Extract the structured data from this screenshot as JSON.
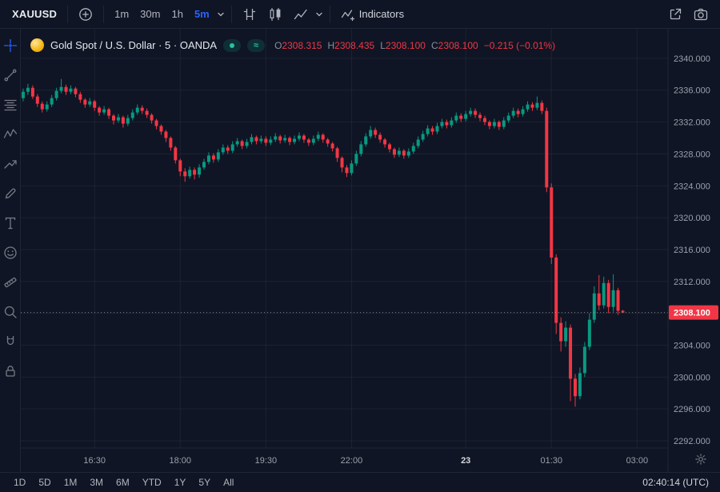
{
  "top_toolbar": {
    "symbol": "XAUUSD",
    "intervals": [
      {
        "label": "1m",
        "active": false
      },
      {
        "label": "30m",
        "active": false
      },
      {
        "label": "1h",
        "active": false
      },
      {
        "label": "5m",
        "active": true
      }
    ],
    "indicators_label": "Indicators"
  },
  "legend": {
    "title": "Gold Spot / U.S. Dollar · 5 · OANDA",
    "badges": {
      "approx_glyph": "≈"
    },
    "ohlc": {
      "open_key": "O",
      "open": "2308.315",
      "high_key": "H",
      "high": "2308.435",
      "low_key": "L",
      "low": "2308.100",
      "close_key": "C",
      "close": "2308.100",
      "change": "−0.215 (−0.01%)"
    }
  },
  "bottom_toolbar": {
    "ranges": [
      "1D",
      "5D",
      "1M",
      "3M",
      "6M",
      "YTD",
      "1Y",
      "5Y",
      "All"
    ],
    "clock": "02:40:14 (UTC)"
  },
  "colors": {
    "background": "#0f1524",
    "accent_blue": "#2962ff",
    "up": "#089981",
    "down": "#f23645",
    "axis_text": "#9aa0ab"
  },
  "chart_data": {
    "type": "candlestick",
    "title": "Gold Spot / U.S. Dollar",
    "interval_minutes": 5,
    "exchange": "OANDA",
    "ylim": [
      2291.1,
      2343.7
    ],
    "x_slots": 136,
    "grid": true,
    "colors": {
      "up": "#089981",
      "down": "#f23645"
    },
    "last_price": {
      "value": 2308.1,
      "label": "2308.100",
      "direction": "down"
    },
    "price_ticks": [
      {
        "price": 2340,
        "label": "2340.000"
      },
      {
        "price": 2336,
        "label": "2336.000"
      },
      {
        "price": 2332,
        "label": "2332.000"
      },
      {
        "price": 2328,
        "label": "2328.000"
      },
      {
        "price": 2324,
        "label": "2324.000"
      },
      {
        "price": 2320,
        "label": "2320.000"
      },
      {
        "price": 2316,
        "label": "2316.000"
      },
      {
        "price": 2312,
        "label": "2312.000"
      },
      {
        "price": 2308,
        "label": ""
      },
      {
        "price": 2304,
        "label": "2304.000"
      },
      {
        "price": 2300,
        "label": "2300.000"
      },
      {
        "price": 2296,
        "label": "2296.000"
      },
      {
        "price": 2292,
        "label": "2292.000"
      }
    ],
    "time_ticks": [
      {
        "i": 15,
        "label": "16:30",
        "major": false
      },
      {
        "i": 33,
        "label": "18:00",
        "major": false
      },
      {
        "i": 51,
        "label": "19:30",
        "major": false
      },
      {
        "i": 69,
        "label": "22:00",
        "major": false
      },
      {
        "i": 93,
        "label": "23",
        "major": true
      },
      {
        "i": 111,
        "label": "01:30",
        "major": false
      },
      {
        "i": 129,
        "label": "03:00",
        "major": false
      }
    ],
    "candles": [
      [
        2335.0,
        2336.2,
        2334.6,
        2335.8
      ],
      [
        2335.8,
        2336.8,
        2335.4,
        2336.3
      ],
      [
        2336.3,
        2336.6,
        2334.9,
        2335.2
      ],
      [
        2335.2,
        2335.5,
        2333.9,
        2334.3
      ],
      [
        2334.3,
        2334.6,
        2333.2,
        2333.6
      ],
      [
        2333.6,
        2334.6,
        2333.3,
        2334.2
      ],
      [
        2334.2,
        2335.4,
        2333.9,
        2335.0
      ],
      [
        2335.0,
        2336.3,
        2334.7,
        2335.9
      ],
      [
        2335.9,
        2337.4,
        2335.6,
        2336.4
      ],
      [
        2336.4,
        2336.7,
        2335.4,
        2335.8
      ],
      [
        2335.8,
        2336.6,
        2335.5,
        2336.2
      ],
      [
        2336.2,
        2336.4,
        2335.1,
        2335.5
      ],
      [
        2335.5,
        2335.8,
        2334.4,
        2334.8
      ],
      [
        2334.8,
        2335.0,
        2333.8,
        2334.2
      ],
      [
        2334.2,
        2335.0,
        2333.9,
        2334.6
      ],
      [
        2334.6,
        2334.8,
        2333.4,
        2333.8
      ],
      [
        2333.8,
        2334.0,
        2332.8,
        2333.2
      ],
      [
        2333.2,
        2334.0,
        2332.9,
        2333.6
      ],
      [
        2333.6,
        2333.8,
        2332.4,
        2332.8
      ],
      [
        2332.8,
        2333.0,
        2331.7,
        2332.2
      ],
      [
        2332.2,
        2333.0,
        2331.9,
        2332.6
      ],
      [
        2332.6,
        2332.8,
        2331.3,
        2331.8
      ],
      [
        2331.8,
        2332.9,
        2331.5,
        2332.5
      ],
      [
        2332.5,
        2333.6,
        2332.2,
        2333.2
      ],
      [
        2333.2,
        2334.2,
        2332.9,
        2333.8
      ],
      [
        2333.8,
        2334.1,
        2333.0,
        2333.4
      ],
      [
        2333.4,
        2333.7,
        2332.5,
        2332.9
      ],
      [
        2332.9,
        2333.1,
        2331.8,
        2332.2
      ],
      [
        2332.2,
        2332.4,
        2331.1,
        2331.5
      ],
      [
        2331.5,
        2331.7,
        2330.4,
        2330.8
      ],
      [
        2330.8,
        2331.0,
        2329.5,
        2330.0
      ],
      [
        2330.0,
        2330.2,
        2328.4,
        2328.8
      ],
      [
        2328.8,
        2329.0,
        2326.8,
        2327.2
      ],
      [
        2327.2,
        2327.4,
        2325.2,
        2325.8
      ],
      [
        2325.8,
        2326.2,
        2324.5,
        2325.2
      ],
      [
        2325.2,
        2326.4,
        2324.9,
        2326.0
      ],
      [
        2326.0,
        2326.3,
        2324.8,
        2325.4
      ],
      [
        2325.4,
        2326.7,
        2325.0,
        2326.3
      ],
      [
        2326.3,
        2327.4,
        2326.0,
        2327.0
      ],
      [
        2327.0,
        2328.2,
        2326.7,
        2327.8
      ],
      [
        2327.8,
        2328.1,
        2326.9,
        2327.3
      ],
      [
        2327.3,
        2328.6,
        2327.0,
        2328.2
      ],
      [
        2328.2,
        2329.2,
        2327.9,
        2328.8
      ],
      [
        2328.8,
        2329.1,
        2328.0,
        2328.4
      ],
      [
        2328.4,
        2329.6,
        2328.1,
        2329.2
      ],
      [
        2329.2,
        2330.0,
        2328.9,
        2329.6
      ],
      [
        2329.6,
        2329.8,
        2328.6,
        2329.0
      ],
      [
        2329.0,
        2329.9,
        2328.7,
        2329.5
      ],
      [
        2329.5,
        2330.5,
        2329.2,
        2330.1
      ],
      [
        2330.1,
        2330.3,
        2329.2,
        2329.6
      ],
      [
        2329.6,
        2330.3,
        2329.3,
        2329.9
      ],
      [
        2329.9,
        2330.2,
        2329.0,
        2329.4
      ],
      [
        2329.4,
        2330.2,
        2329.1,
        2329.8
      ],
      [
        2329.8,
        2330.6,
        2329.5,
        2330.2
      ],
      [
        2330.2,
        2330.4,
        2329.3,
        2329.7
      ],
      [
        2329.7,
        2330.4,
        2329.4,
        2330.0
      ],
      [
        2330.0,
        2330.2,
        2329.1,
        2329.5
      ],
      [
        2329.5,
        2330.3,
        2329.2,
        2329.9
      ],
      [
        2329.9,
        2330.7,
        2329.6,
        2330.3
      ],
      [
        2330.3,
        2330.5,
        2329.4,
        2329.8
      ],
      [
        2329.8,
        2330.0,
        2329.0,
        2329.4
      ],
      [
        2329.4,
        2330.3,
        2329.1,
        2329.9
      ],
      [
        2329.9,
        2330.8,
        2329.6,
        2330.4
      ],
      [
        2330.4,
        2330.6,
        2329.4,
        2329.8
      ],
      [
        2329.8,
        2330.0,
        2328.9,
        2329.3
      ],
      [
        2329.3,
        2329.5,
        2328.3,
        2328.7
      ],
      [
        2328.7,
        2328.9,
        2327.0,
        2327.5
      ],
      [
        2327.5,
        2327.7,
        2325.7,
        2326.3
      ],
      [
        2326.3,
        2326.6,
        2325.1,
        2325.6
      ],
      [
        2325.6,
        2327.2,
        2325.3,
        2326.8
      ],
      [
        2326.8,
        2328.4,
        2326.5,
        2328.0
      ],
      [
        2328.0,
        2329.6,
        2327.7,
        2329.2
      ],
      [
        2329.2,
        2330.6,
        2328.9,
        2330.2
      ],
      [
        2330.2,
        2331.5,
        2329.9,
        2331.0
      ],
      [
        2331.0,
        2331.3,
        2330.0,
        2330.4
      ],
      [
        2330.4,
        2330.7,
        2329.4,
        2329.8
      ],
      [
        2329.8,
        2330.0,
        2328.8,
        2329.2
      ],
      [
        2329.2,
        2329.4,
        2328.2,
        2328.6
      ],
      [
        2328.6,
        2328.8,
        2327.5,
        2327.9
      ],
      [
        2327.9,
        2328.8,
        2327.6,
        2328.4
      ],
      [
        2328.4,
        2328.6,
        2327.4,
        2327.8
      ],
      [
        2327.8,
        2328.7,
        2327.5,
        2328.3
      ],
      [
        2328.3,
        2329.4,
        2328.0,
        2329.0
      ],
      [
        2329.0,
        2330.2,
        2328.7,
        2329.8
      ],
      [
        2329.8,
        2330.9,
        2329.5,
        2330.5
      ],
      [
        2330.5,
        2331.6,
        2330.2,
        2331.2
      ],
      [
        2331.2,
        2331.5,
        2330.4,
        2330.8
      ],
      [
        2330.8,
        2331.9,
        2330.5,
        2331.5
      ],
      [
        2331.5,
        2332.4,
        2331.2,
        2332.0
      ],
      [
        2332.0,
        2332.3,
        2331.2,
        2331.6
      ],
      [
        2331.6,
        2332.6,
        2331.3,
        2332.2
      ],
      [
        2332.2,
        2333.2,
        2331.9,
        2332.8
      ],
      [
        2332.8,
        2333.1,
        2332.0,
        2332.4
      ],
      [
        2332.4,
        2333.4,
        2332.1,
        2333.0
      ],
      [
        2333.0,
        2333.8,
        2332.7,
        2333.4
      ],
      [
        2333.4,
        2333.7,
        2332.5,
        2332.9
      ],
      [
        2332.9,
        2333.2,
        2332.1,
        2332.5
      ],
      [
        2332.5,
        2332.8,
        2331.6,
        2332.0
      ],
      [
        2332.0,
        2332.2,
        2331.1,
        2331.5
      ],
      [
        2331.5,
        2332.4,
        2331.2,
        2332.0
      ],
      [
        2332.0,
        2332.2,
        2331.0,
        2331.4
      ],
      [
        2331.4,
        2332.6,
        2331.1,
        2332.2
      ],
      [
        2332.2,
        2333.2,
        2331.9,
        2332.8
      ],
      [
        2332.8,
        2333.8,
        2332.5,
        2333.4
      ],
      [
        2333.4,
        2333.7,
        2332.6,
        2333.0
      ],
      [
        2333.0,
        2334.0,
        2332.7,
        2333.6
      ],
      [
        2333.6,
        2334.6,
        2333.3,
        2334.2
      ],
      [
        2334.2,
        2334.5,
        2333.4,
        2333.8
      ],
      [
        2333.8,
        2335.2,
        2333.5,
        2334.4
      ],
      [
        2334.4,
        2334.7,
        2333.0,
        2333.4
      ],
      [
        2333.4,
        2333.8,
        2323.2,
        2323.8
      ],
      [
        2323.8,
        2324.3,
        2314.2,
        2315.0
      ],
      [
        2315.0,
        2315.4,
        2305.4,
        2306.8
      ],
      [
        2306.8,
        2307.5,
        2303.2,
        2304.5
      ],
      [
        2304.5,
        2307.0,
        2303.8,
        2306.2
      ],
      [
        2306.2,
        2306.6,
        2297.0,
        2299.8
      ],
      [
        2299.8,
        2300.4,
        2296.3,
        2297.6
      ],
      [
        2297.6,
        2301.2,
        2297.2,
        2300.5
      ],
      [
        2300.5,
        2304.4,
        2300.0,
        2303.8
      ],
      [
        2303.8,
        2308.0,
        2303.4,
        2307.2
      ],
      [
        2307.2,
        2311.4,
        2306.8,
        2310.5
      ],
      [
        2310.5,
        2312.8,
        2308.4,
        2309.0
      ],
      [
        2309.0,
        2312.6,
        2308.6,
        2311.8
      ],
      [
        2311.8,
        2312.2,
        2308.0,
        2308.8
      ],
      [
        2308.8,
        2312.9,
        2308.2,
        2310.9
      ],
      [
        2310.9,
        2311.2,
        2307.8,
        2308.315
      ],
      [
        2308.315,
        2308.435,
        2308.1,
        2308.1
      ]
    ]
  }
}
